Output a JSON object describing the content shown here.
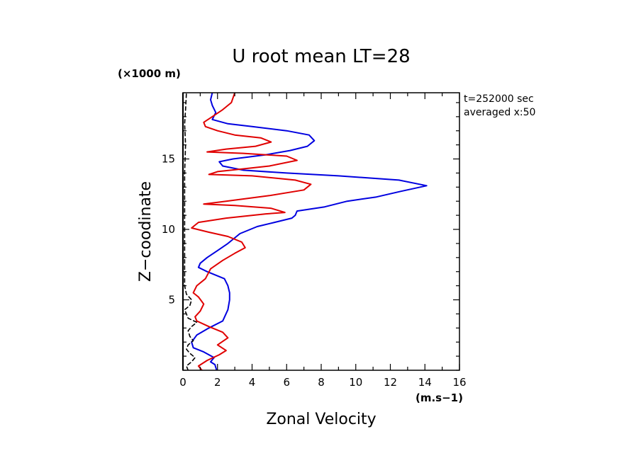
{
  "chart_data": {
    "type": "line",
    "title": "U root mean LT=28",
    "xlabel": "Zonal Velocity",
    "ylabel": "Z−coodinate",
    "x_unit": "(m.s−1)",
    "y_unit": "(×1000 m)",
    "xlim": [
      0,
      16
    ],
    "ylim": [
      0,
      19.7
    ],
    "x_ticks": [
      0,
      2,
      4,
      6,
      8,
      10,
      12,
      14,
      16
    ],
    "y_ticks": [
      5,
      10,
      15
    ],
    "info_lines": [
      "t=252000 sec",
      "averaged  x:50"
    ],
    "series": [
      {
        "color": "#0000e0",
        "style": "solid",
        "points": [
          [
            1.95,
            0.0
          ],
          [
            1.85,
            0.4
          ],
          [
            1.6,
            0.6
          ],
          [
            1.8,
            0.9
          ],
          [
            1.2,
            1.3
          ],
          [
            0.6,
            1.6
          ],
          [
            0.5,
            2.0
          ],
          [
            0.8,
            2.5
          ],
          [
            1.5,
            3.0
          ],
          [
            2.3,
            3.5
          ],
          [
            2.6,
            4.3
          ],
          [
            2.7,
            5.0
          ],
          [
            2.7,
            5.5
          ],
          [
            2.6,
            6.0
          ],
          [
            2.4,
            6.5
          ],
          [
            1.4,
            7.0
          ],
          [
            0.9,
            7.3
          ],
          [
            1.0,
            7.6
          ],
          [
            1.4,
            8.0
          ],
          [
            2.0,
            8.5
          ],
          [
            2.6,
            9.0
          ],
          [
            3.3,
            9.7
          ],
          [
            4.3,
            10.2
          ],
          [
            5.3,
            10.5
          ],
          [
            6.3,
            10.8
          ],
          [
            6.5,
            11.0
          ],
          [
            6.6,
            11.3
          ],
          [
            8.2,
            11.6
          ],
          [
            9.5,
            12.0
          ],
          [
            11.2,
            12.3
          ],
          [
            12.6,
            12.7
          ],
          [
            14.1,
            13.1
          ],
          [
            12.5,
            13.5
          ],
          [
            9.0,
            13.8
          ],
          [
            6.0,
            14.0
          ],
          [
            3.5,
            14.2
          ],
          [
            2.3,
            14.5
          ],
          [
            2.1,
            14.8
          ],
          [
            2.9,
            15.0
          ],
          [
            4.8,
            15.3
          ],
          [
            6.2,
            15.6
          ],
          [
            7.2,
            15.9
          ],
          [
            7.6,
            16.3
          ],
          [
            7.3,
            16.7
          ],
          [
            6.0,
            17.0
          ],
          [
            4.0,
            17.3
          ],
          [
            2.6,
            17.5
          ],
          [
            1.7,
            17.8
          ],
          [
            1.9,
            18.3
          ],
          [
            1.7,
            18.8
          ],
          [
            1.6,
            19.2
          ],
          [
            1.7,
            19.7
          ]
        ]
      },
      {
        "color": "#e00000",
        "style": "solid",
        "points": [
          [
            1.1,
            0.0
          ],
          [
            0.9,
            0.3
          ],
          [
            1.4,
            0.7
          ],
          [
            2.1,
            1.1
          ],
          [
            2.5,
            1.4
          ],
          [
            2.0,
            1.8
          ],
          [
            2.6,
            2.3
          ],
          [
            2.3,
            2.7
          ],
          [
            1.5,
            3.1
          ],
          [
            0.8,
            3.5
          ],
          [
            0.7,
            3.8
          ],
          [
            1.0,
            4.2
          ],
          [
            1.2,
            4.7
          ],
          [
            0.9,
            5.2
          ],
          [
            0.6,
            5.5
          ],
          [
            0.8,
            6.0
          ],
          [
            1.3,
            6.5
          ],
          [
            1.6,
            7.2
          ],
          [
            2.3,
            7.8
          ],
          [
            3.0,
            8.3
          ],
          [
            3.6,
            8.7
          ],
          [
            3.4,
            9.1
          ],
          [
            2.6,
            9.5
          ],
          [
            1.5,
            9.8
          ],
          [
            0.5,
            10.1
          ],
          [
            0.9,
            10.5
          ],
          [
            2.5,
            10.8
          ],
          [
            4.8,
            11.1
          ],
          [
            5.9,
            11.2
          ],
          [
            5.1,
            11.5
          ],
          [
            3.0,
            11.7
          ],
          [
            1.2,
            11.8
          ],
          [
            2.5,
            12.0
          ],
          [
            5.0,
            12.4
          ],
          [
            7.0,
            12.8
          ],
          [
            7.4,
            13.2
          ],
          [
            6.5,
            13.5
          ],
          [
            4.0,
            13.8
          ],
          [
            1.5,
            13.9
          ],
          [
            2.0,
            14.1
          ],
          [
            3.5,
            14.3
          ],
          [
            5.0,
            14.5
          ],
          [
            6.6,
            14.9
          ],
          [
            6.0,
            15.2
          ],
          [
            3.5,
            15.4
          ],
          [
            1.4,
            15.5
          ],
          [
            2.5,
            15.7
          ],
          [
            4.2,
            15.9
          ],
          [
            5.1,
            16.2
          ],
          [
            4.5,
            16.5
          ],
          [
            3.0,
            16.7
          ],
          [
            2.0,
            17.0
          ],
          [
            1.3,
            17.3
          ],
          [
            1.2,
            17.6
          ],
          [
            1.7,
            18.0
          ],
          [
            2.3,
            18.5
          ],
          [
            2.8,
            19.0
          ],
          [
            3.0,
            19.7
          ]
        ]
      },
      {
        "color": "#000000",
        "style": "dashed",
        "points": [
          [
            0.3,
            0.0
          ],
          [
            0.2,
            0.3
          ],
          [
            0.5,
            0.6
          ],
          [
            0.7,
            0.9
          ],
          [
            0.4,
            1.2
          ],
          [
            0.2,
            1.5
          ],
          [
            0.3,
            1.8
          ],
          [
            0.6,
            2.1
          ],
          [
            0.4,
            2.4
          ],
          [
            0.3,
            2.8
          ],
          [
            0.5,
            3.1
          ],
          [
            0.8,
            3.4
          ],
          [
            0.3,
            3.7
          ],
          [
            0.2,
            4.0
          ],
          [
            0.1,
            4.3
          ],
          [
            0.4,
            4.6
          ],
          [
            0.5,
            5.0
          ],
          [
            0.2,
            5.4
          ],
          [
            0.1,
            6.0
          ],
          [
            0.1,
            8.0
          ],
          [
            0.1,
            10.0
          ],
          [
            0.1,
            12.0
          ],
          [
            0.1,
            14.0
          ],
          [
            0.15,
            16.0
          ],
          [
            0.1,
            17.5
          ],
          [
            0.15,
            18.5
          ],
          [
            0.2,
            19.7
          ]
        ]
      }
    ]
  }
}
